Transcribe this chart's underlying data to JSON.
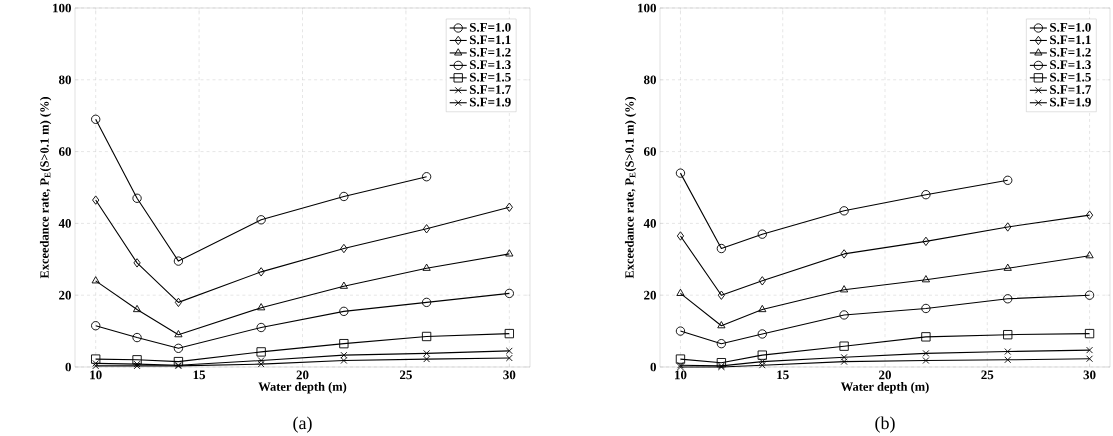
{
  "chart_data": [
    {
      "type": "line",
      "xlabel": "Water depth (m)",
      "ylabel": "Exceedance rate, P$_{E}$(S>0.1 m) (%)",
      "annotations": [
        "(a)"
      ],
      "x": [
        10,
        12,
        14,
        18,
        22,
        26,
        30
      ],
      "xlim": [
        9,
        31
      ],
      "ylim": [
        0,
        100
      ],
      "xticks": [
        10,
        15,
        20,
        25,
        30
      ],
      "yticks": [
        0,
        20,
        40,
        60,
        80,
        100
      ],
      "grid": true,
      "legend": "top right",
      "line_style": "solid",
      "series": [
        {
          "name": "S.F=1.0",
          "color": "#000000",
          "marker": "circle",
          "values": [
            69,
            47,
            29.5,
            41,
            47.5,
            53,
            null
          ]
        },
        {
          "name": "S.F=1.1",
          "color": "#000000",
          "marker": "diamond",
          "values": [
            46.5,
            29,
            18,
            26.5,
            33,
            38.5,
            44.5
          ]
        },
        {
          "name": "S.F=1.2",
          "color": "#000000",
          "marker": "triangle",
          "values": [
            24,
            16,
            9,
            16.5,
            22.5,
            27.5,
            31.5
          ]
        },
        {
          "name": "S.F=1.3",
          "color": "#000000",
          "marker": "circle",
          "values": [
            11.5,
            8.2,
            5.2,
            11,
            15.5,
            18,
            20.5
          ]
        },
        {
          "name": "S.F=1.5",
          "color": "#000000",
          "marker": "square",
          "values": [
            2.2,
            2,
            1.5,
            4.2,
            6.5,
            8.5,
            9.3
          ]
        },
        {
          "name": "S.F=1.7",
          "color": "#000000",
          "marker": "cross",
          "values": [
            1,
            0.8,
            0.5,
            1.8,
            3.3,
            3.8,
            4.5
          ]
        },
        {
          "name": "S.F=1.9",
          "color": "#000000",
          "marker": "cross",
          "values": [
            0.3,
            0.3,
            0.3,
            0.8,
            1.8,
            2.2,
            2.5
          ]
        }
      ]
    },
    {
      "type": "line",
      "xlabel": "Water depth (m)",
      "ylabel": "Exceedance rate, P$_{E}$(S>0.1 m) (%)",
      "annotations": [
        "(b)"
      ],
      "x": [
        10,
        12,
        14,
        18,
        22,
        26,
        30
      ],
      "xlim": [
        9,
        31
      ],
      "ylim": [
        0,
        100
      ],
      "xticks": [
        10,
        15,
        20,
        25,
        30
      ],
      "yticks": [
        0,
        20,
        40,
        60,
        80,
        100
      ],
      "grid": true,
      "legend": "top right",
      "line_style": "solid",
      "series": [
        {
          "name": "S.F=1.0",
          "color": "#000000",
          "marker": "circle",
          "values": [
            54,
            33,
            37,
            43.5,
            48,
            52,
            null
          ]
        },
        {
          "name": "S.F=1.1",
          "color": "#000000",
          "marker": "diamond",
          "values": [
            36.5,
            20,
            24,
            31.5,
            35,
            39,
            42.3
          ]
        },
        {
          "name": "S.F=1.2",
          "color": "#000000",
          "marker": "triangle",
          "values": [
            20.5,
            11.5,
            16,
            21.5,
            24.3,
            27.5,
            31
          ]
        },
        {
          "name": "S.F=1.3",
          "color": "#000000",
          "marker": "circle",
          "values": [
            10,
            6.5,
            9.2,
            14.5,
            16.3,
            19,
            20
          ]
        },
        {
          "name": "S.F=1.5",
          "color": "#000000",
          "marker": "square",
          "values": [
            2.2,
            1.2,
            3.3,
            5.8,
            8.4,
            9,
            9.3
          ]
        },
        {
          "name": "S.F=1.7",
          "color": "#000000",
          "marker": "cross",
          "values": [
            0.5,
            0.3,
            1.5,
            2.7,
            3.8,
            4.3,
            4.7
          ]
        },
        {
          "name": "S.F=1.9",
          "color": "#000000",
          "marker": "cross",
          "values": [
            0,
            0,
            0.5,
            1.5,
            1.8,
            2,
            2.3
          ]
        }
      ]
    }
  ]
}
